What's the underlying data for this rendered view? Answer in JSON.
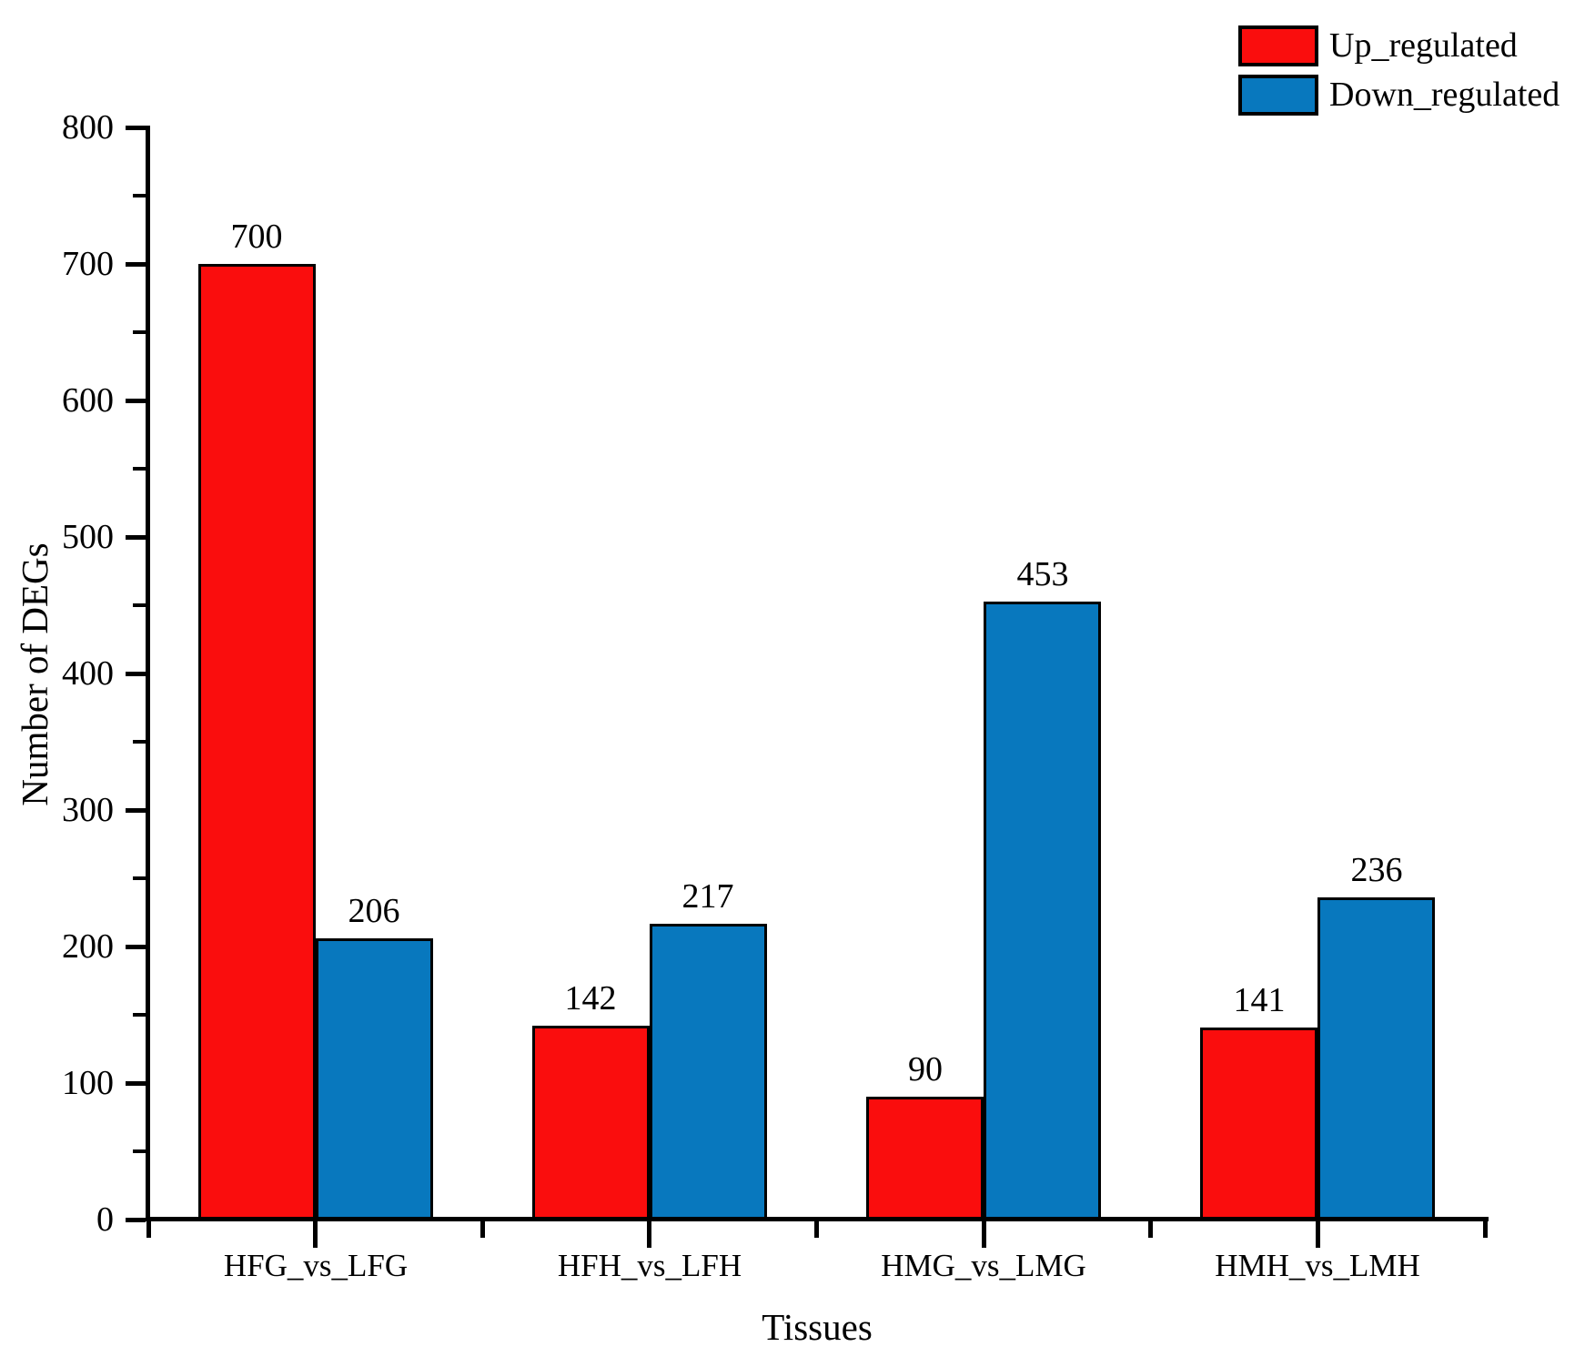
{
  "chart_data": {
    "type": "bar",
    "title": "",
    "xlabel": "Tissues",
    "ylabel": "Number of DEGs",
    "categories": [
      "HFG_vs_LFG",
      "HFH_vs_LFH",
      "HMG_vs_LMG",
      "HMH_vs_LMH"
    ],
    "series": [
      {
        "name": "Up_regulated",
        "color": "#FA0D0D",
        "values": [
          700,
          142,
          90,
          141
        ]
      },
      {
        "name": "Down_regulated",
        "color": "#0878BE",
        "values": [
          206,
          217,
          453,
          236
        ]
      }
    ],
    "ylim": [
      0,
      800
    ],
    "y_major_step": 100,
    "y_minor_step": 50,
    "y_tick_labels": [
      "0",
      "100",
      "200",
      "300",
      "400",
      "500",
      "600",
      "700",
      "800"
    ],
    "bar_value_labels_shown": true,
    "grid": false,
    "legend_position": "top-right"
  },
  "colors": {
    "axis": "#000000",
    "background": "#FFFFFF",
    "up_regulated": "#FA0D0D",
    "down_regulated": "#0878BE"
  }
}
